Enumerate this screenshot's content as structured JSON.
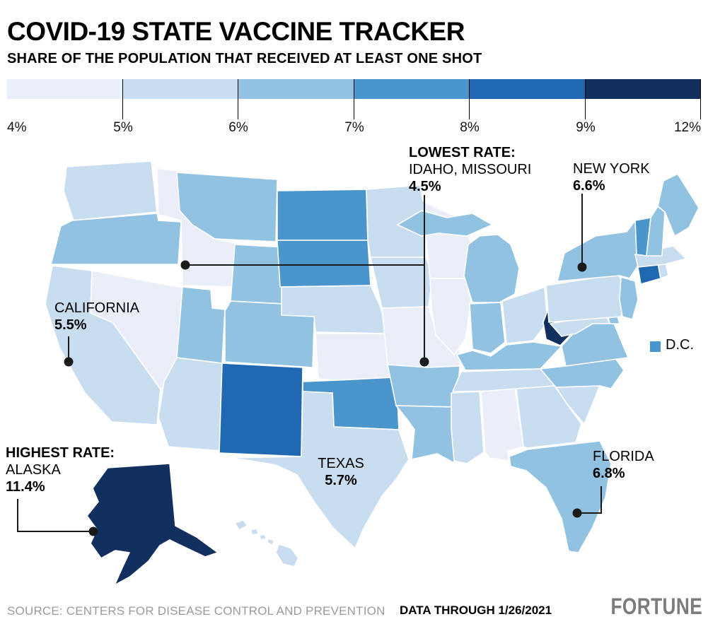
{
  "header": {
    "title": "COVID-19 STATE VACCINE TRACKER",
    "subtitle": "SHARE OF THE POPULATION THAT RECEIVED AT LEAST ONE SHOT"
  },
  "legend": {
    "tick_labels": [
      "4%",
      "5%",
      "6%",
      "7%",
      "8%",
      "9%",
      "12%"
    ]
  },
  "dc_legend": {
    "label": "D.C.",
    "bucket": "7-8"
  },
  "annotations": {
    "lowest": {
      "line1": "LOWEST RATE:",
      "line2": "IDAHO, MISSOURI",
      "value": "4.5%"
    },
    "new_york": {
      "label": "NEW YORK",
      "value": "6.6%"
    },
    "california": {
      "label": "CALIFORNIA",
      "value": "5.5%"
    },
    "highest": {
      "line1": "HIGHEST RATE:",
      "line2": "ALASKA",
      "value": "11.4%"
    },
    "texas": {
      "label": "TEXAS",
      "value": "5.7%"
    },
    "florida": {
      "label": "FLORIDA",
      "value": "6.8%"
    }
  },
  "footer": {
    "source": "SOURCE: CENTERS FOR DISEASE CONTROL AND PREVENTION",
    "data_through": "DATA THROUGH 1/26/2021",
    "brand": "FORTUNE",
    "brand_color": "#7c7c7c"
  },
  "chart_data": {
    "type": "choropleth_map",
    "title": "COVID-19 State Vaccine Tracker",
    "metric": "Share of the population that received at least one shot (%)",
    "data_through": "1/26/2021",
    "legend_breaks_percent": [
      4,
      5,
      6,
      7,
      8,
      9,
      12
    ],
    "bins": [
      {
        "key": "4-5",
        "range_label": "4%-5%",
        "color": "#e9eef9"
      },
      {
        "key": "5-6",
        "range_label": "5%-6%",
        "color": "#c9ddf0"
      },
      {
        "key": "6-7",
        "range_label": "6%-7%",
        "color": "#92c2e2"
      },
      {
        "key": "7-8",
        "range_label": "7%-8%",
        "color": "#4b95cd"
      },
      {
        "key": "8-9",
        "range_label": "8%-9%",
        "color": "#2068b1"
      },
      {
        "key": "9-12",
        "range_label": "9%-12%",
        "color": "#12305f"
      }
    ],
    "labeled_values": {
      "Idaho": 4.5,
      "Missouri": 4.5,
      "New York": 6.6,
      "California": 5.5,
      "Alaska": 11.4,
      "Texas": 5.7,
      "Florida": 6.8
    },
    "states": {
      "WA": "5-6",
      "OR": "6-7",
      "CA": "5-6",
      "NV": "4-5",
      "ID": "4-5",
      "MT": "6-7",
      "WY": "6-7",
      "UT": "6-7",
      "CO": "6-7",
      "AZ": "5-6",
      "NM": "8-9",
      "ND": "7-8",
      "SD": "7-8",
      "NE": "5-6",
      "KS": "4-5",
      "OK": "7-8",
      "TX": "5-6",
      "MN": "5-6",
      "IA": "5-6",
      "MO": "4-5",
      "AR": "6-7",
      "LA": "6-7",
      "WI": "4-5",
      "IL": "4-5",
      "MI": "6-7",
      "IN": "6-7",
      "OH": "5-6",
      "KY": "6-7",
      "TN": "5-6",
      "MS": "5-6",
      "AL": "4-5",
      "GA": "5-6",
      "FL": "6-7",
      "SC": "5-6",
      "NC": "6-7",
      "VA": "6-7",
      "WV": "9-12",
      "MD": "5-6",
      "DE": "6-7",
      "PA": "5-6",
      "NY": "6-7",
      "NJ": "6-7",
      "CT": "8-9",
      "RI": "5-6",
      "MA": "5-6",
      "VT": "7-8",
      "NH": "6-7",
      "ME": "6-7",
      "AK": "9-12",
      "HI": "5-6",
      "DC": "7-8"
    }
  }
}
